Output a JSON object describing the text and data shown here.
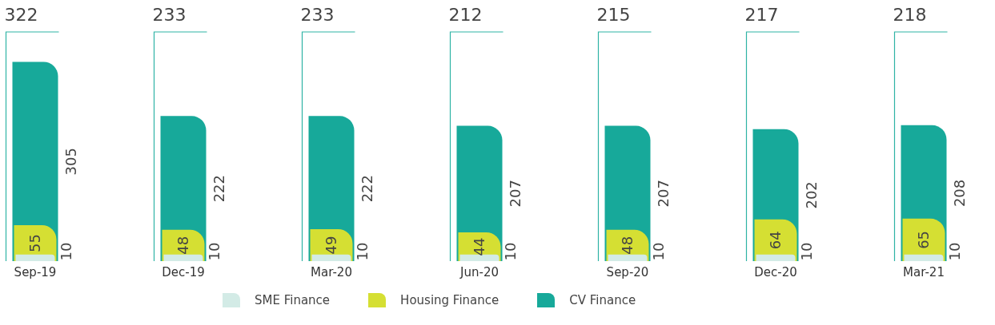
{
  "chart_data": {
    "type": "bar",
    "categories": [
      "Sep-19",
      "Dec-19",
      "Mar-20",
      "Jun-20",
      "Sep-20",
      "Dec-20",
      "Mar-21"
    ],
    "series": [
      {
        "name": "SME Finance",
        "color": "#d3ebe6",
        "values": [
          10,
          10,
          10,
          10,
          10,
          10,
          10
        ]
      },
      {
        "name": "Housing Finance",
        "color": "#d5df33",
        "values": [
          55,
          48,
          49,
          44,
          48,
          64,
          65
        ]
      },
      {
        "name": "CV Finance",
        "color": "#17a99a",
        "values": [
          305,
          222,
          222,
          207,
          207,
          202,
          208
        ]
      }
    ],
    "data_labels": true,
    "legend": "bottom",
    "annotations": [
      "322",
      "233",
      "233",
      "212",
      "215",
      "217",
      "218"
    ]
  }
}
